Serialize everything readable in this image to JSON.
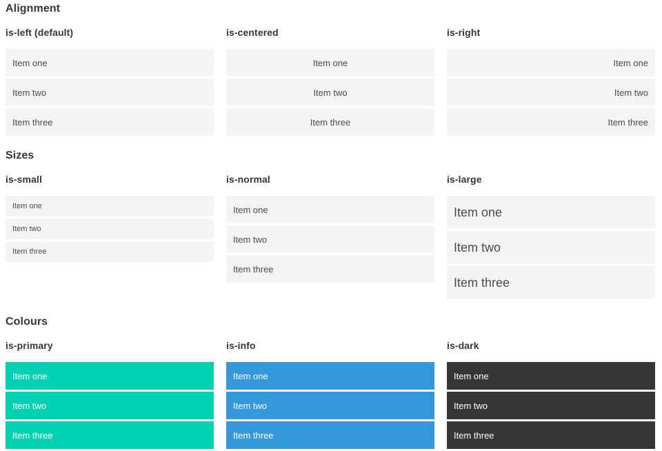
{
  "sections": [
    {
      "title": "Alignment",
      "columns": [
        {
          "label": "is-left (default)",
          "items": [
            "Item one",
            "Item two",
            "Item three"
          ]
        },
        {
          "label": "is-centered",
          "items": [
            "Item one",
            "Item two",
            "Item three"
          ]
        },
        {
          "label": "is-right",
          "items": [
            "Item one",
            "Item two",
            "Item three"
          ]
        }
      ]
    },
    {
      "title": "Sizes",
      "columns": [
        {
          "label": "is-small",
          "items": [
            "Item one",
            "Item two",
            "Item three"
          ]
        },
        {
          "label": "is-normal",
          "items": [
            "Item one",
            "Item two",
            "Item three"
          ]
        },
        {
          "label": "is-large",
          "items": [
            "Item one",
            "Item two",
            "Item three"
          ]
        }
      ]
    },
    {
      "title": "Colours",
      "columns": [
        {
          "label": "is-primary",
          "items": [
            "Item one",
            "Item two",
            "Item three"
          ]
        },
        {
          "label": "is-info",
          "items": [
            "Item one",
            "Item two",
            "Item three"
          ]
        },
        {
          "label": "is-dark",
          "items": [
            "Item one",
            "Item two",
            "Item three"
          ]
        }
      ]
    }
  ],
  "colors": {
    "primary": "#00d1b2",
    "info": "#3398dc",
    "dark": "#363636",
    "item_background": "#f5f5f5",
    "item_text": "#4a4a4a",
    "heading_text": "#363636",
    "colored_item_text": "#ffffff"
  }
}
